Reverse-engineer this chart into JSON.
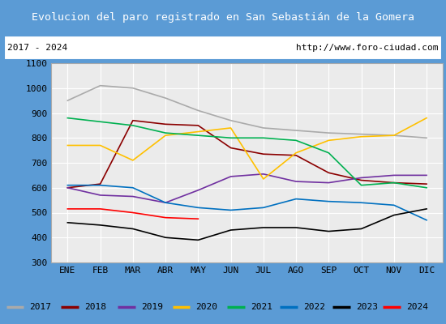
{
  "title": "Evolucion del paro registrado en San Sebastián de la Gomera",
  "subtitle_left": "2017 - 2024",
  "subtitle_right": "http://www.foro-ciudad.com",
  "title_bg_color": "#5b9bd5",
  "title_text_color": "#ffffff",
  "subtitle_bg_color": "#ffffff",
  "subtitle_text_color": "#000000",
  "plot_bg_color": "#ebebeb",
  "grid_color": "#ffffff",
  "months": [
    "ENE",
    "FEB",
    "MAR",
    "ABR",
    "MAY",
    "JUN",
    "JUL",
    "AGO",
    "SEP",
    "OCT",
    "NOV",
    "DIC"
  ],
  "ylim": [
    300,
    1100
  ],
  "yticks": [
    300,
    400,
    500,
    600,
    700,
    800,
    900,
    1000,
    1100
  ],
  "series": {
    "2017": {
      "color": "#aaaaaa",
      "data": [
        950,
        1010,
        1000,
        960,
        910,
        870,
        840,
        830,
        820,
        815,
        810,
        800
      ]
    },
    "2018": {
      "color": "#8b0000",
      "data": [
        600,
        615,
        870,
        855,
        850,
        760,
        735,
        730,
        660,
        630,
        620,
        615
      ]
    },
    "2019": {
      "color": "#7030a0",
      "data": [
        600,
        570,
        565,
        540,
        590,
        645,
        655,
        625,
        620,
        640,
        650,
        650
      ]
    },
    "2020": {
      "color": "#ffc000",
      "data": [
        770,
        770,
        710,
        810,
        825,
        840,
        635,
        740,
        790,
        805,
        810,
        880
      ]
    },
    "2021": {
      "color": "#00b050",
      "data": [
        880,
        865,
        850,
        820,
        810,
        800,
        800,
        790,
        740,
        610,
        620,
        600
      ]
    },
    "2022": {
      "color": "#0070c0",
      "data": [
        610,
        610,
        600,
        540,
        520,
        510,
        520,
        555,
        545,
        540,
        530,
        470
      ]
    },
    "2023": {
      "color": "#000000",
      "data": [
        460,
        450,
        435,
        400,
        390,
        430,
        440,
        440,
        425,
        435,
        490,
        515
      ]
    },
    "2024": {
      "color": "#ff0000",
      "data": [
        515,
        515,
        500,
        480,
        475,
        null,
        null,
        null,
        null,
        null,
        null,
        null
      ]
    }
  },
  "legend_order": [
    "2017",
    "2018",
    "2019",
    "2020",
    "2021",
    "2022",
    "2023",
    "2024"
  ],
  "border_color": "#5b9bd5",
  "axis_font_size": 8
}
